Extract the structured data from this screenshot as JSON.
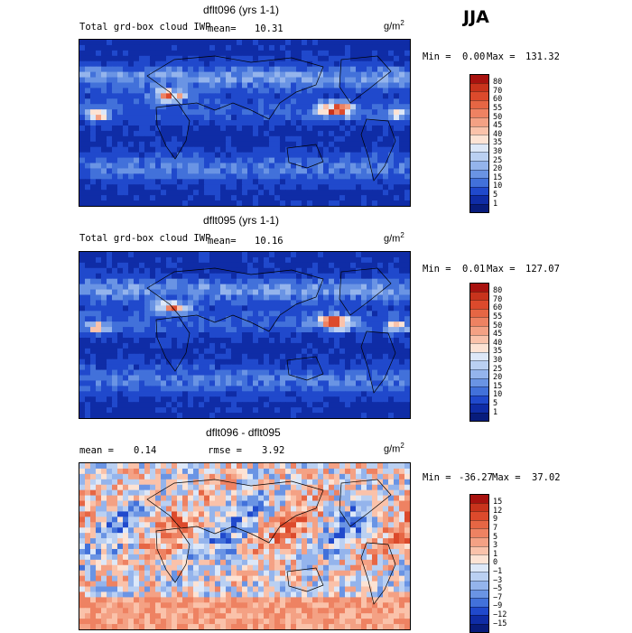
{
  "season": "JJA",
  "panels": [
    {
      "id": "p1",
      "title": "dflt096 (yrs 1-1)",
      "field_label": "Total grd-box cloud IWP",
      "mean_label": "mean=",
      "mean_value": "10.31",
      "units_base": "g/m",
      "units_sup": "2",
      "min_label": "Min =",
      "min_value": "0.00",
      "max_label": "Max =",
      "max_value": "131.32",
      "colorbar": {
        "labels": [
          "80",
          "70",
          "60",
          "55",
          "50",
          "45",
          "40",
          "35",
          "30",
          "25",
          "20",
          "15",
          "10",
          "5",
          "1"
        ],
        "colors": [
          "#a8120f",
          "#c8331c",
          "#dc4a2c",
          "#e66644",
          "#ee8262",
          "#f4a184",
          "#fac2aa",
          "#fde3d4",
          "#dde8f8",
          "#bad0f2",
          "#94b4ec",
          "#6a94e4",
          "#4271da",
          "#2049cc",
          "#0f2ca6",
          "#081c7c"
        ]
      },
      "seed": 11
    },
    {
      "id": "p2",
      "title": "dflt095 (yrs 1-1)",
      "field_label": "Total grd-box cloud IWP",
      "mean_label": "mean=",
      "mean_value": "10.16",
      "units_base": "g/m",
      "units_sup": "2",
      "min_label": "Min =",
      "min_value": "0.01",
      "max_label": "Max =",
      "max_value": "127.07",
      "colorbar": {
        "labels": [
          "80",
          "70",
          "60",
          "55",
          "50",
          "45",
          "40",
          "35",
          "30",
          "25",
          "20",
          "15",
          "10",
          "5",
          "1"
        ],
        "colors": [
          "#a8120f",
          "#c8331c",
          "#dc4a2c",
          "#e66644",
          "#ee8262",
          "#f4a184",
          "#fac2aa",
          "#fde3d4",
          "#dde8f8",
          "#bad0f2",
          "#94b4ec",
          "#6a94e4",
          "#4271da",
          "#2049cc",
          "#0f2ca6",
          "#081c7c"
        ]
      },
      "seed": 23
    },
    {
      "id": "p3",
      "title": "dflt096 - dflt095",
      "mean_label": "mean =",
      "mean_value": "0.14",
      "rmse_label": "rmse =",
      "rmse_value": "3.92",
      "units_base": "g/m",
      "units_sup": "2",
      "min_label": "Min =",
      "min_value": "-36.27",
      "max_label": "Max =",
      "max_value": "37.02",
      "colorbar": {
        "labels": [
          "15",
          "12",
          "9",
          "7",
          "5",
          "3",
          "1",
          "0",
          "−1",
          "−3",
          "−5",
          "−7",
          "−9",
          "−12",
          "−15"
        ],
        "colors": [
          "#a8120f",
          "#c8331c",
          "#dc4a2c",
          "#e66644",
          "#ee8262",
          "#f4a184",
          "#fac2aa",
          "#fde3d4",
          "#dde8f8",
          "#bad0f2",
          "#94b4ec",
          "#6a94e4",
          "#4271da",
          "#2049cc",
          "#0f2ca6",
          "#081c7c"
        ]
      },
      "seed": 37
    }
  ]
}
